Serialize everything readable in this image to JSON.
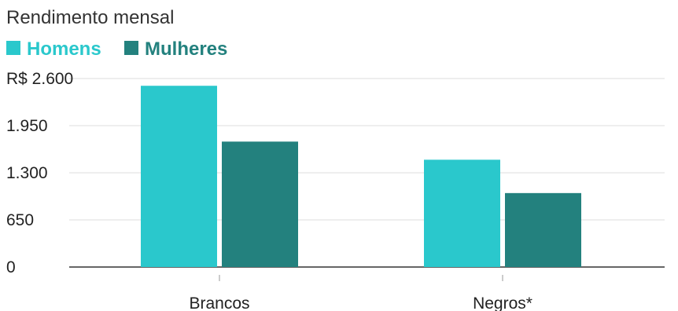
{
  "chart_data": {
    "type": "bar",
    "title": "Rendimento mensal",
    "xlabel": "",
    "ylabel": "",
    "categories": [
      "Brancos",
      "Negros*"
    ],
    "series": [
      {
        "name": "Homens",
        "color": "#2ac8cc",
        "values": [
          2500,
          1480
        ]
      },
      {
        "name": "Mulheres",
        "color": "#23817e",
        "values": [
          1730,
          1020
        ]
      }
    ],
    "ylim": [
      0,
      2600
    ],
    "yticks": [
      0,
      650,
      1300,
      1950,
      2600
    ],
    "ytick_labels": [
      "0",
      "650",
      "1.300",
      "1.950",
      "R$ 2.600"
    ],
    "grid": true,
    "legend_position": "top-left"
  }
}
